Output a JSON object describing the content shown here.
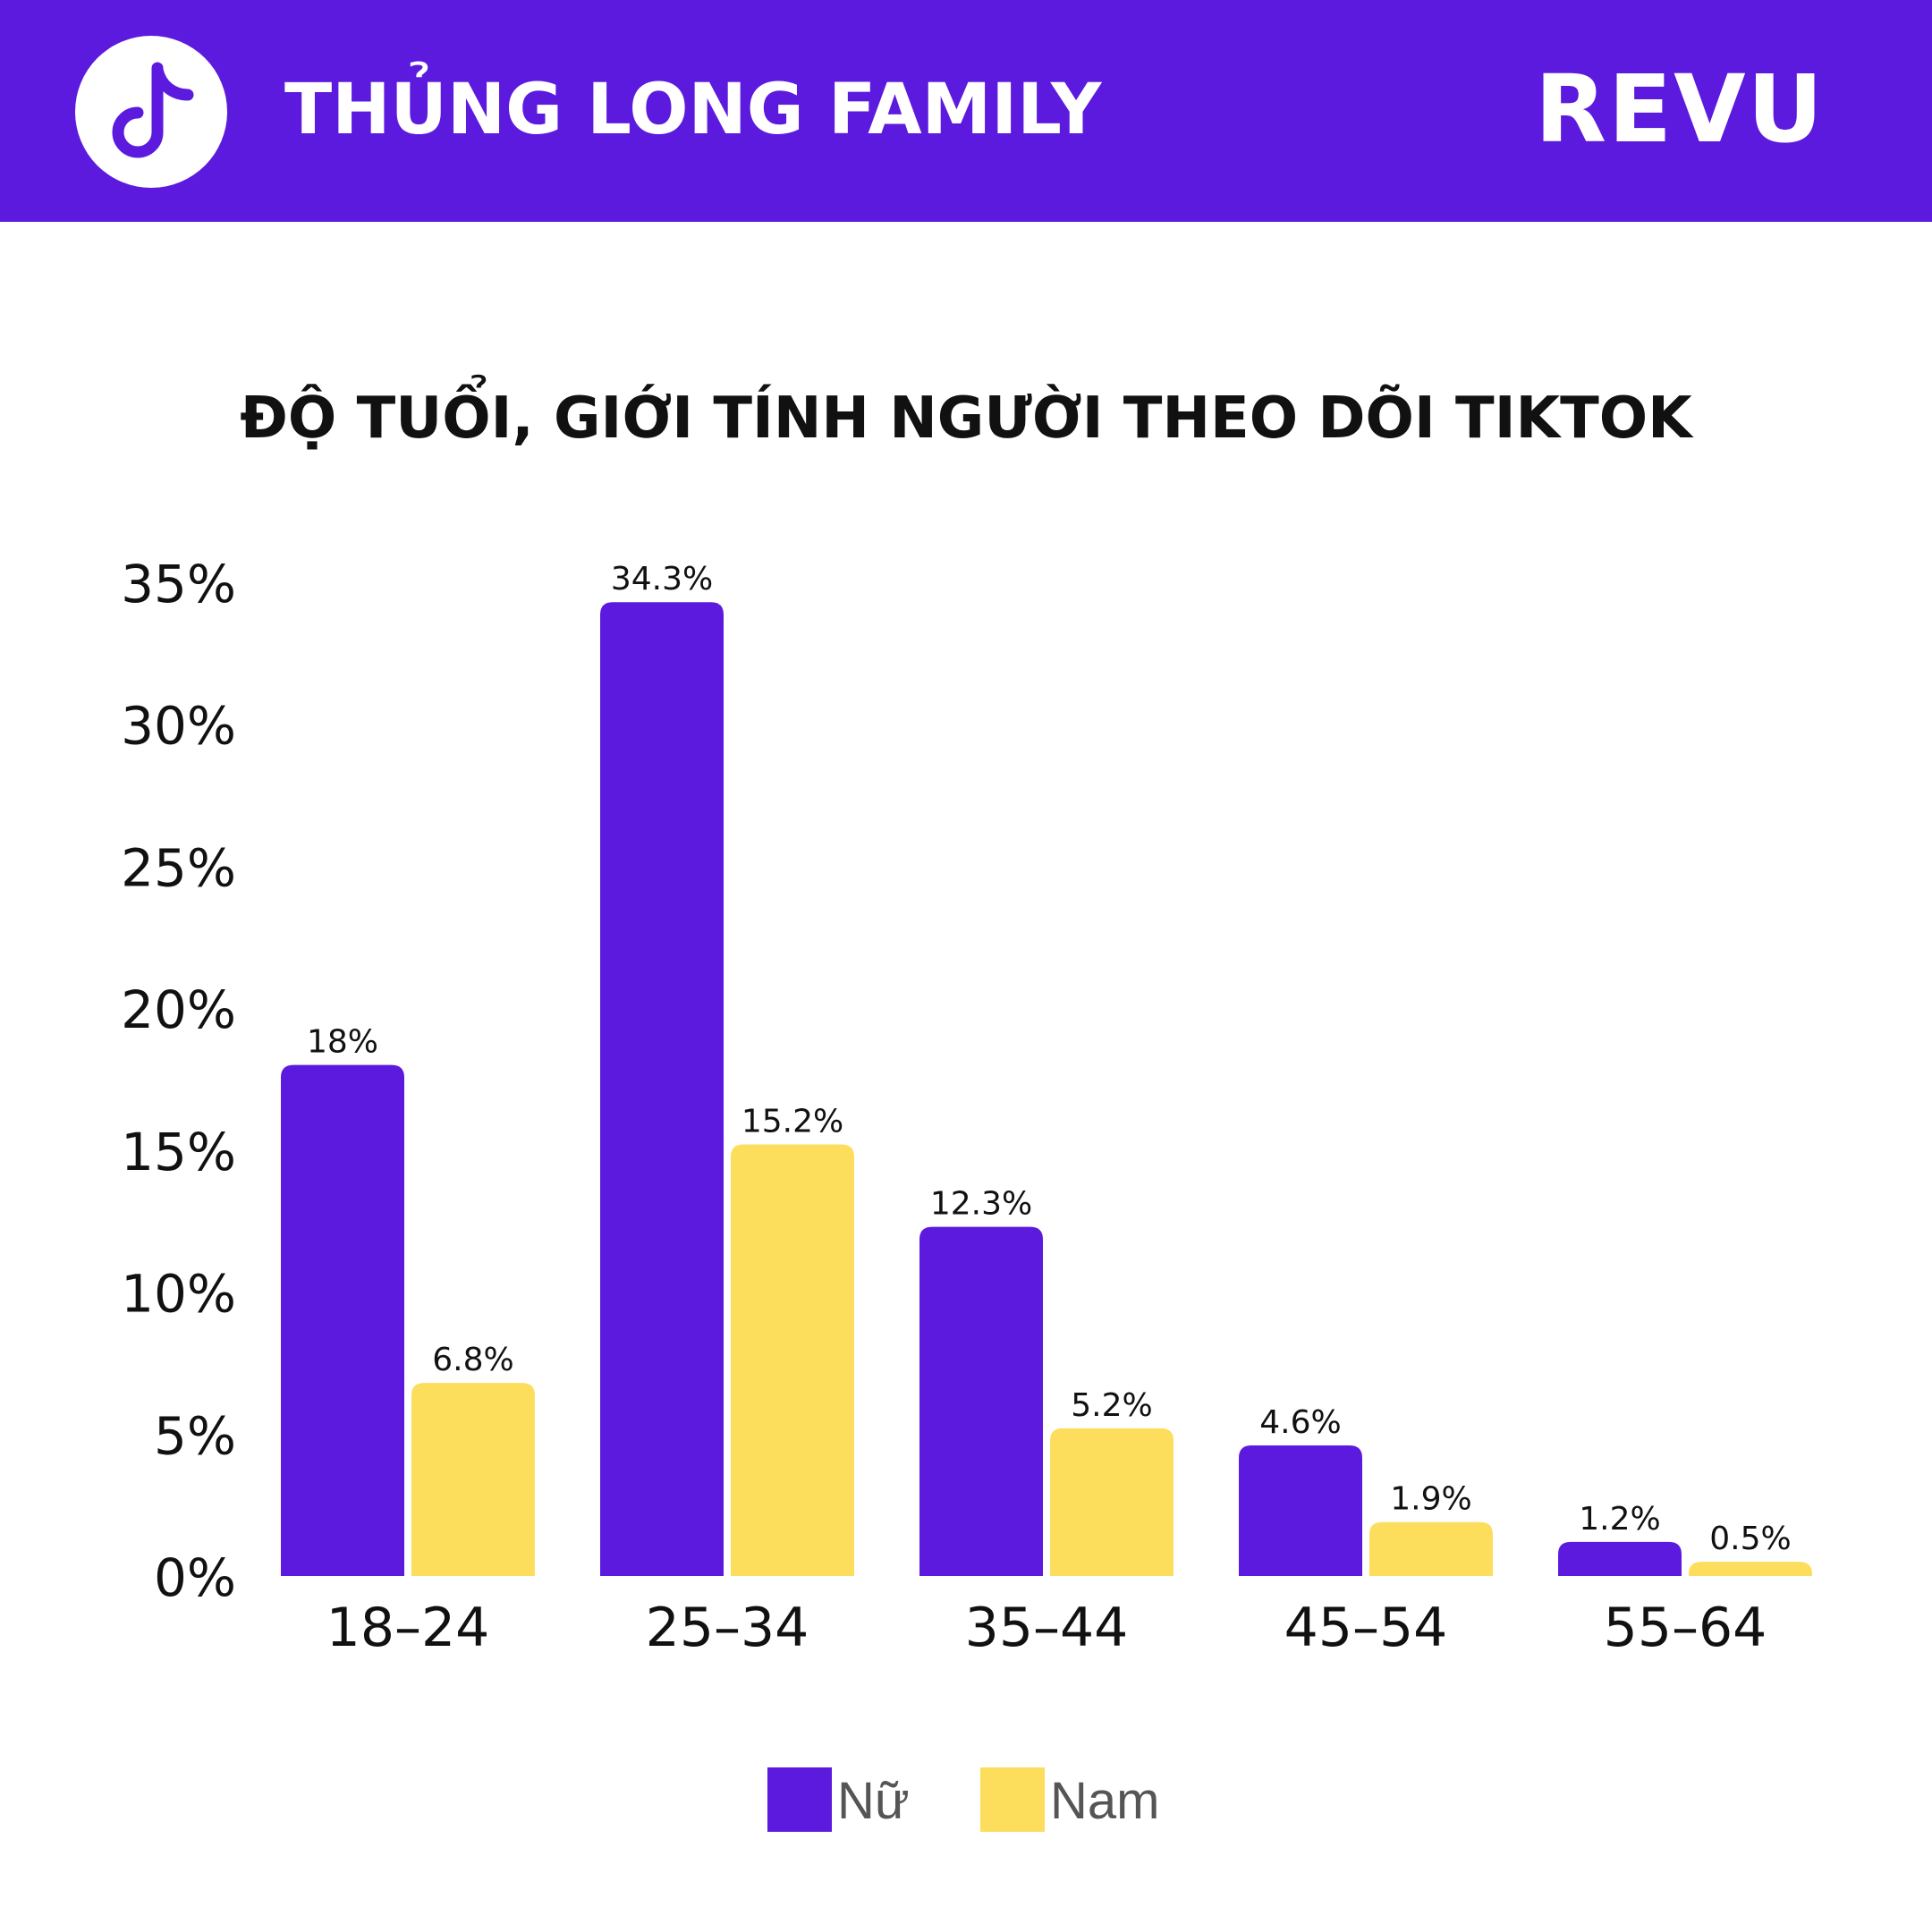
{
  "header": {
    "title": "THỦNG LONG FAMILY",
    "brand": "REVU",
    "logo_icon": "tiktok-note-icon",
    "background_color": "#5c1adf"
  },
  "chart_title": "ĐỘ TUỔI, GIỚI TÍNH NGƯỜI THEO DÕI TIKTOK",
  "legend": {
    "items": [
      {
        "label": "Nữ",
        "color": "#5c1adf"
      },
      {
        "label": "Nam",
        "color": "#fddd5c"
      }
    ]
  },
  "chart_data": {
    "type": "bar",
    "title": "ĐỘ TUỔI, GIỚI TÍNH NGƯỜI THEO DÕI TIKTOK",
    "categories": [
      "18–24",
      "25–34",
      "35–44",
      "45–54",
      "55–64"
    ],
    "series": [
      {
        "name": "Nữ",
        "color": "#5c1adf",
        "values": [
          18,
          34.3,
          12.3,
          4.6,
          1.2
        ],
        "labels": [
          "18%",
          "34.3%",
          "12.3%",
          "4.6%",
          "1.2%"
        ]
      },
      {
        "name": "Nam",
        "color": "#fddd5c",
        "values": [
          6.8,
          15.2,
          5.2,
          1.9,
          0.5
        ],
        "labels": [
          "6.8%",
          "15.2%",
          "5.2%",
          "1.9%",
          "0.5%"
        ]
      }
    ],
    "ylim": [
      0,
      35
    ],
    "yticks": [
      0,
      5,
      10,
      15,
      20,
      25,
      30,
      35
    ],
    "ytick_labels": [
      "0%",
      "5%",
      "10%",
      "15%",
      "20%",
      "25%",
      "30%",
      "35%"
    ],
    "xlabel": "",
    "ylabel": "",
    "grid": false,
    "legend_position": "bottom-center"
  }
}
